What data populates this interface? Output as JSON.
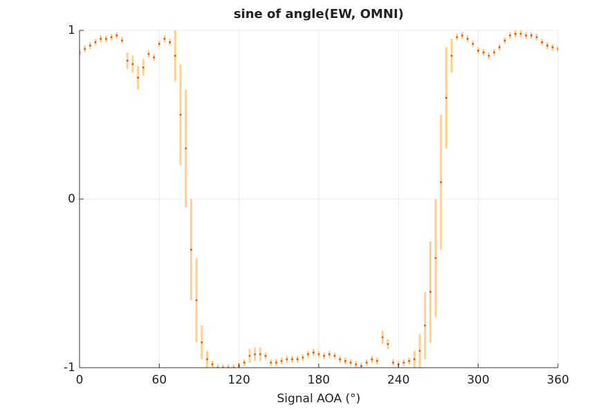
{
  "chart_data": {
    "type": "errorbar-scatter",
    "title": "sine of angle(EW, OMNI)",
    "x_label": "Signal AOA (°)",
    "x": [
      0,
      4,
      8,
      12,
      16,
      20,
      24,
      28,
      32,
      36,
      40,
      44,
      48,
      52,
      56,
      60,
      64,
      68,
      72,
      76,
      80,
      84,
      88,
      92,
      96,
      100,
      104,
      108,
      112,
      116,
      120,
      124,
      128,
      132,
      136,
      140,
      144,
      148,
      152,
      156,
      160,
      164,
      168,
      172,
      176,
      180,
      184,
      188,
      192,
      196,
      200,
      204,
      208,
      212,
      216,
      220,
      224,
      228,
      232,
      236,
      240,
      244,
      248,
      252,
      256,
      260,
      264,
      268,
      272,
      276,
      280,
      284,
      288,
      292,
      296,
      300,
      304,
      308,
      312,
      316,
      320,
      324,
      328,
      332,
      336,
      340,
      344,
      348,
      352,
      356,
      360
    ],
    "series": [
      {
        "color": "#d95319",
        "error_color": "#ffd08f",
        "values": [
          0.87,
          0.89,
          0.91,
          0.93,
          0.95,
          0.95,
          0.96,
          0.97,
          0.94,
          0.82,
          0.8,
          0.72,
          0.78,
          0.86,
          0.84,
          0.92,
          0.95,
          0.93,
          0.85,
          0.5,
          0.3,
          -0.3,
          -0.6,
          -0.85,
          -0.95,
          -0.98,
          -1,
          -1,
          -1,
          -1,
          -0.99,
          -0.97,
          -0.93,
          -0.92,
          -0.92,
          -0.93,
          -0.97,
          -0.97,
          -0.96,
          -0.95,
          -0.95,
          -0.95,
          -0.94,
          -0.92,
          -0.91,
          -0.92,
          -0.93,
          -0.92,
          -0.93,
          -0.95,
          -0.96,
          -0.97,
          -0.98,
          -0.99,
          -0.97,
          -0.95,
          -0.96,
          -0.82,
          -0.86,
          -0.97,
          -0.98,
          -0.97,
          -0.96,
          -0.95,
          -0.9,
          -0.75,
          -0.55,
          -0.35,
          0.1,
          0.6,
          0.85,
          0.96,
          0.97,
          0.95,
          0.92,
          0.88,
          0.87,
          0.85,
          0.87,
          0.9,
          0.94,
          0.97,
          0.98,
          0.98,
          0.97,
          0.97,
          0.96,
          0.93,
          0.91,
          0.9,
          0.89
        ],
        "errors": [
          0.02,
          0.02,
          0.02,
          0.02,
          0.02,
          0.02,
          0.02,
          0.02,
          0.02,
          0.05,
          0.05,
          0.07,
          0.05,
          0.02,
          0.02,
          0.02,
          0.02,
          0.02,
          0.15,
          0.3,
          0.35,
          0.3,
          0.25,
          0.1,
          0.05,
          0.02,
          0.02,
          0.02,
          0.02,
          0.02,
          0.02,
          0.02,
          0.04,
          0.04,
          0.04,
          0.02,
          0.02,
          0.02,
          0.02,
          0.02,
          0.02,
          0.02,
          0.02,
          0.02,
          0.02,
          0.02,
          0.02,
          0.02,
          0.02,
          0.02,
          0.02,
          0.02,
          0.02,
          0.02,
          0.02,
          0.02,
          0.02,
          0.04,
          0.03,
          0.02,
          0.02,
          0.02,
          0.02,
          0.05,
          0.1,
          0.2,
          0.3,
          0.35,
          0.4,
          0.3,
          0.1,
          0.02,
          0.02,
          0.02,
          0.02,
          0.02,
          0.02,
          0.02,
          0.02,
          0.02,
          0.02,
          0.02,
          0.02,
          0.02,
          0.02,
          0.02,
          0.02,
          0.02,
          0.02,
          0.02,
          0.02
        ]
      }
    ],
    "xlim": [
      0,
      360
    ],
    "xticks": [
      0,
      60,
      120,
      180,
      240,
      300,
      360
    ],
    "ylim": [
      -1,
      1
    ],
    "yticks": [
      -1,
      0,
      1
    ],
    "grid": true
  }
}
